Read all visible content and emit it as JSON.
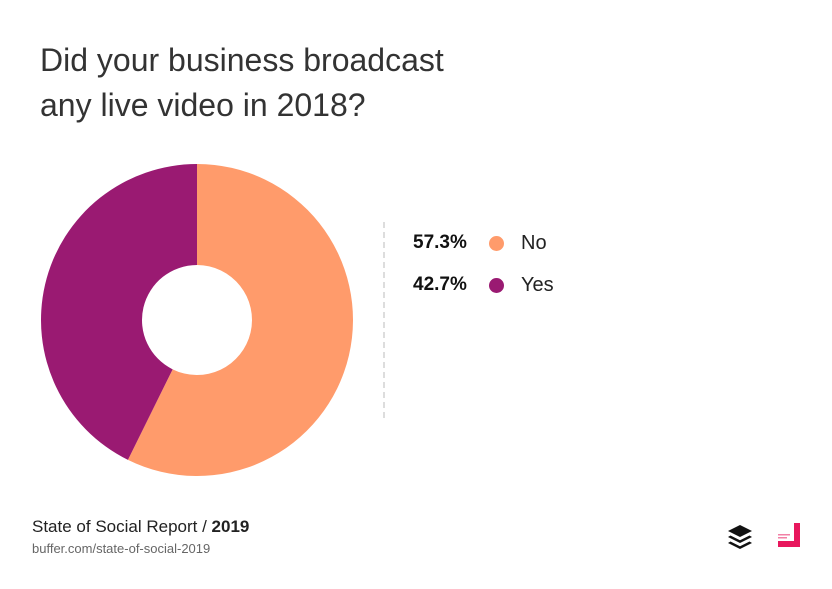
{
  "title": {
    "line1": "Did your business broadcast",
    "line2": "any live video in 2018?"
  },
  "chart_data": {
    "type": "pie",
    "variant": "donut",
    "title": "Did your business broadcast any live video in 2018?",
    "slices": [
      {
        "label": "No",
        "value": 57.3,
        "display": "57.3%",
        "color": "#FF9B6B"
      },
      {
        "label": "Yes",
        "value": 42.7,
        "display": "42.7%",
        "color": "#9A1A72"
      }
    ],
    "legend_position": "right"
  },
  "footer": {
    "report": "State of Social Report / ",
    "year": "2019",
    "url": "buffer.com/state-of-social-2019"
  },
  "icons": {
    "left_logo": "buffer-layers-icon",
    "right_logo": "brand-corner-icon"
  },
  "colors": {
    "brand_pink": "#E8175D"
  }
}
